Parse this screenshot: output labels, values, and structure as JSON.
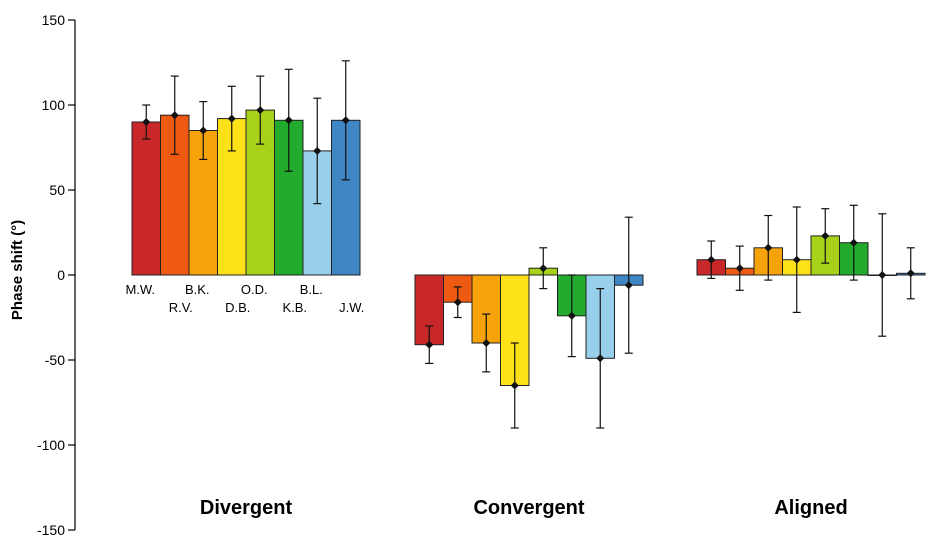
{
  "chart_data": {
    "type": "bar",
    "ylabel": "Phase shift (°)",
    "ylim": [
      -150,
      150
    ],
    "yticks": [
      150,
      100,
      50,
      0,
      -50,
      -100,
      -150
    ],
    "categories": [
      "Divergent",
      "Convergent",
      "Aligned"
    ],
    "subjects": [
      "M.W.",
      "R.V.",
      "B.K.",
      "D.B.",
      "O.D.",
      "K.B.",
      "B.L.",
      "J.W."
    ],
    "colors": [
      "#c8282a",
      "#ef5a12",
      "#f6a20a",
      "#fde21a",
      "#a8d21a",
      "#22ab2c",
      "#98cfea",
      "#3e86c4"
    ],
    "series": [
      {
        "name": "M.W.",
        "values": [
          90,
          -41,
          9
        ],
        "errors": [
          10,
          11,
          11
        ]
      },
      {
        "name": "R.V.",
        "values": [
          94,
          -16,
          4
        ],
        "errors": [
          23,
          9,
          13
        ]
      },
      {
        "name": "B.K.",
        "values": [
          85,
          -40,
          16
        ],
        "errors": [
          17,
          17,
          19
        ]
      },
      {
        "name": "D.B.",
        "values": [
          92,
          -65,
          9
        ],
        "errors": [
          19,
          25,
          31
        ]
      },
      {
        "name": "O.D.",
        "values": [
          97,
          4,
          23
        ],
        "errors": [
          20,
          12,
          16
        ]
      },
      {
        "name": "K.B.",
        "values": [
          91,
          -24,
          19
        ],
        "errors": [
          30,
          24,
          22
        ]
      },
      {
        "name": "B.L.",
        "values": [
          73,
          -49,
          0
        ],
        "errors": [
          31,
          41,
          36
        ]
      },
      {
        "name": "J.W.",
        "values": [
          91,
          -6,
          1
        ],
        "errors": [
          35,
          40,
          15
        ]
      }
    ]
  }
}
